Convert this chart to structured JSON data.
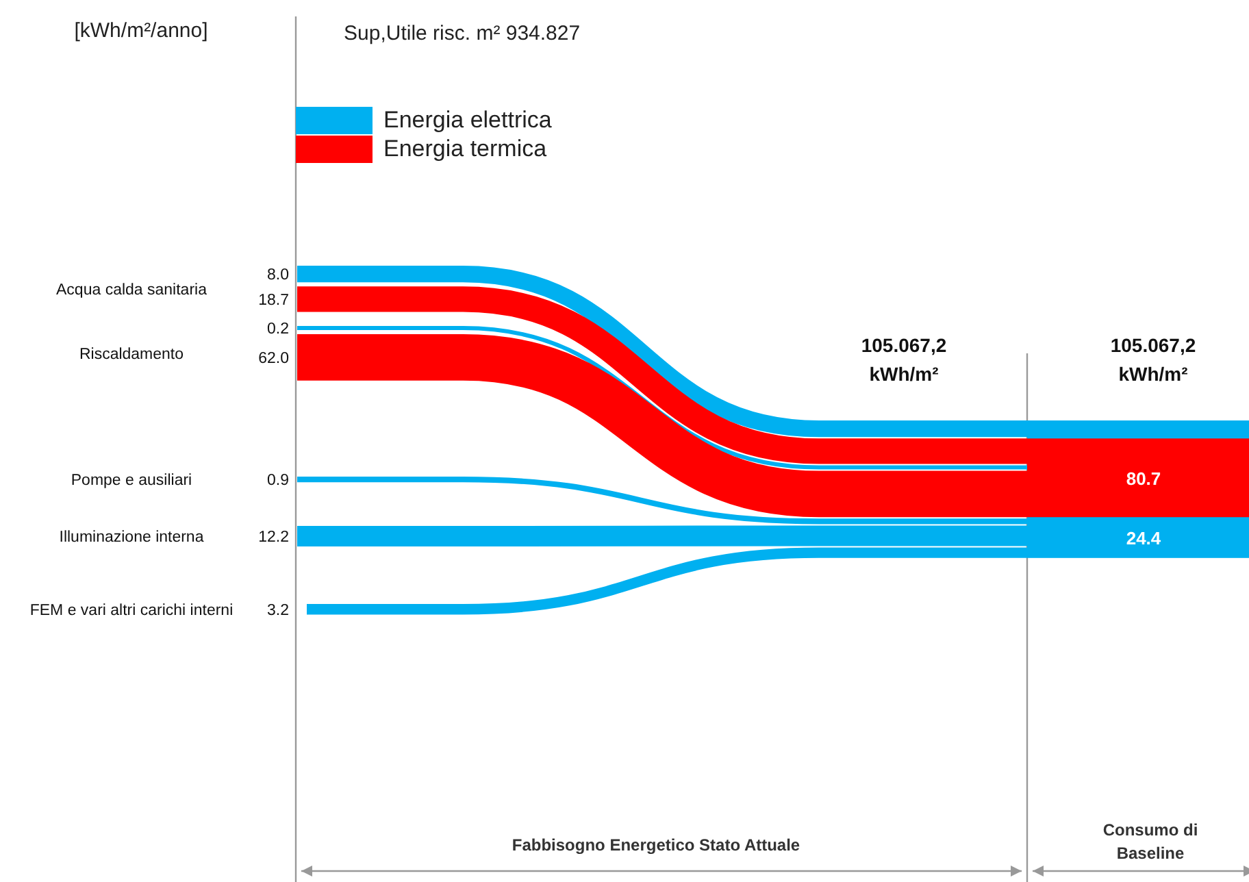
{
  "chart_data": {
    "type": "other",
    "title": "Sup,Utile risc. m² 934.827",
    "ylabel": "[kWh/m²/anno]",
    "categories": [
      "Acqua calda sanitaria",
      "Riscaldamento",
      "Pompe e ausiliari",
      "Illuminazione interna",
      "FEM e vari altri carichi interni"
    ],
    "series": [
      {
        "name": "Energia elettrica",
        "color": "#00b0f0",
        "values": [
          8.0,
          0.2,
          0.9,
          12.2,
          3.2
        ],
        "value_labels": [
          "8.0",
          "0.2",
          "0.9",
          "12.2",
          "3.2"
        ]
      },
      {
        "name": "Energia termica",
        "color": "#ff0000",
        "values": [
          18.7,
          62.0,
          null,
          null,
          null
        ],
        "value_labels": [
          "18.7",
          "62.0",
          null,
          null,
          null
        ]
      }
    ],
    "totals": [
      "24.4",
      "80.7"
    ],
    "legend": "top left",
    "annotations": [
      "105.067,2\nkWh/m²",
      "105.067,2\nkWh/m²",
      "Fabbisogno Energetico Stato Attuale",
      "Consumo di\nBaseline"
    ]
  }
}
